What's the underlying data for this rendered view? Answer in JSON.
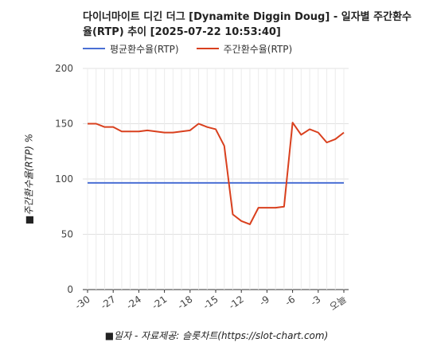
{
  "chart_data": {
    "type": "line",
    "title": "다이너마이트 디긴 더그 [Dynamite Diggin Doug] - 일자별 주간환수율(RTP) 추이 [2025-07-22 10:53:40]",
    "xlabel": "■일자 - 자료제공: 슬롯차트(https://slot-chart.com)",
    "ylabel": "■주간환수율(RTP) %",
    "ylim": [
      0,
      200
    ],
    "yticks": [
      "0",
      "50",
      "100",
      "150",
      "200"
    ],
    "xtick_labels": [
      "-30",
      "-27",
      "-24",
      "-21",
      "-18",
      "-15",
      "-12",
      "-9",
      "-6",
      "-3",
      "오늘"
    ],
    "x": [
      -30,
      -29,
      -28,
      -27,
      -26,
      -25,
      -24,
      -23,
      -22,
      -21,
      -20,
      -19,
      -18,
      -17,
      -16,
      -15,
      -14,
      -13,
      -12,
      -11,
      -10,
      -9,
      -8,
      -7,
      -6,
      -5,
      -4,
      -3,
      -2,
      -1,
      0
    ],
    "series": [
      {
        "name": "평균환수율(RTP)",
        "color": "#4a6fd4",
        "values": [
          96.5,
          96.5,
          96.5,
          96.5,
          96.5,
          96.5,
          96.5,
          96.5,
          96.5,
          96.5,
          96.5,
          96.5,
          96.5,
          96.5,
          96.5,
          96.5,
          96.5,
          96.5,
          96.5,
          96.5,
          96.5,
          96.5,
          96.5,
          96.5,
          96.5,
          96.5,
          96.5,
          96.5,
          96.5,
          96.5,
          96.5
        ]
      },
      {
        "name": "주간환수율(RTP)",
        "color": "#d9401e",
        "values": [
          150,
          150,
          147,
          147,
          143,
          143,
          143,
          144,
          143,
          142,
          142,
          143,
          144,
          150,
          147,
          145,
          130,
          68,
          62,
          59,
          74,
          74,
          74,
          75,
          151,
          140,
          145,
          142,
          133,
          136,
          142
        ]
      }
    ],
    "grid": true,
    "legend_position": "top-left"
  }
}
